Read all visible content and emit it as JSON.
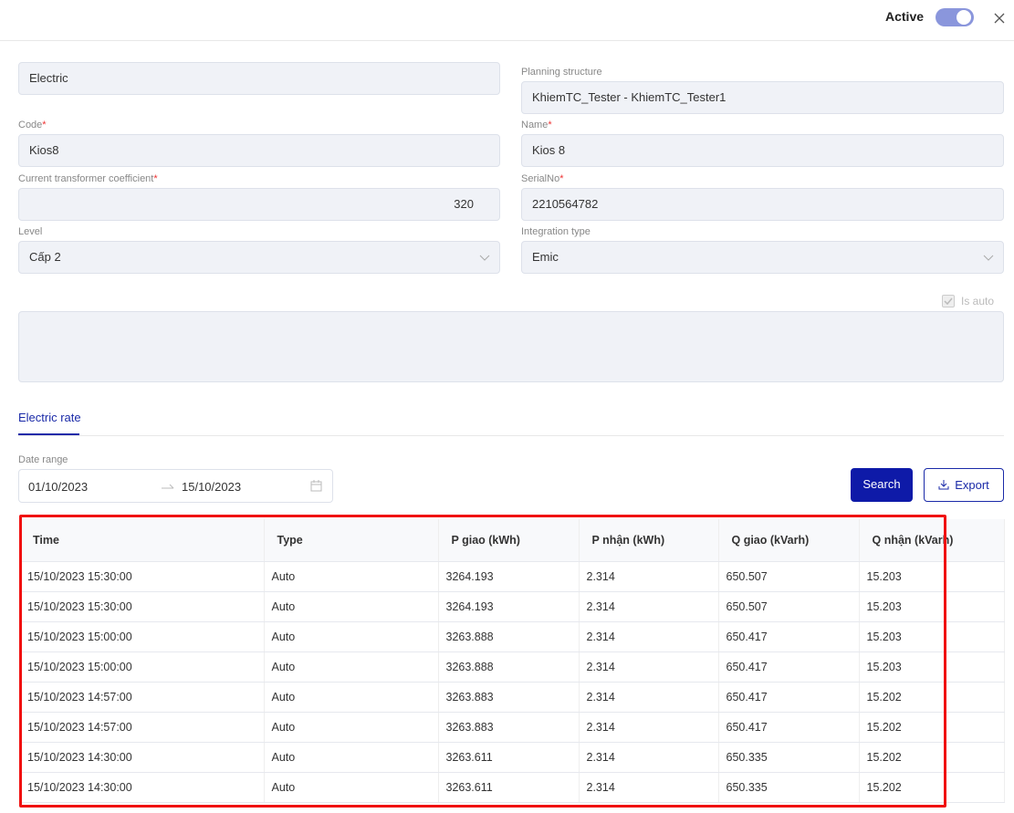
{
  "header": {
    "active_label": "Active"
  },
  "required_mark": "*",
  "form": {
    "type_value": "Electric",
    "planning_structure": {
      "label": "Planning structure",
      "value": "KhiemTC_Tester - KhiemTC_Tester1"
    },
    "code": {
      "label": "Code",
      "value": "Kios8"
    },
    "name": {
      "label": "Name",
      "value": "Kios 8"
    },
    "ct_coefficient": {
      "label": "Current transformer coefficient",
      "value": "320"
    },
    "serial_no": {
      "label": "SerialNo",
      "value": "2210564782"
    },
    "level": {
      "label": "Level",
      "value": "Cấp 2"
    },
    "integration_type": {
      "label": "Integration type",
      "value": "Emic"
    },
    "is_auto": "Is auto"
  },
  "tab": "Electric rate",
  "filter": {
    "label": "Date range",
    "start": "01/10/2023",
    "end": "15/10/2023",
    "search": "Search",
    "export": "Export"
  },
  "table": {
    "columns": [
      "Time",
      "Type",
      "P giao (kWh)",
      "P nhận (kWh)",
      "Q giao (kVarh)",
      "Q nhận (kVarh)"
    ],
    "rows": [
      [
        "15/10/2023 15:30:00",
        "Auto",
        "3264.193",
        "2.314",
        "650.507",
        "15.203"
      ],
      [
        "15/10/2023 15:30:00",
        "Auto",
        "3264.193",
        "2.314",
        "650.507",
        "15.203"
      ],
      [
        "15/10/2023 15:00:00",
        "Auto",
        "3263.888",
        "2.314",
        "650.417",
        "15.203"
      ],
      [
        "15/10/2023 15:00:00",
        "Auto",
        "3263.888",
        "2.314",
        "650.417",
        "15.203"
      ],
      [
        "15/10/2023 14:57:00",
        "Auto",
        "3263.883",
        "2.314",
        "650.417",
        "15.202"
      ],
      [
        "15/10/2023 14:57:00",
        "Auto",
        "3263.883",
        "2.314",
        "650.417",
        "15.202"
      ],
      [
        "15/10/2023 14:30:00",
        "Auto",
        "3263.611",
        "2.314",
        "650.335",
        "15.202"
      ],
      [
        "15/10/2023 14:30:00",
        "Auto",
        "3263.611",
        "2.314",
        "650.335",
        "15.202"
      ]
    ]
  }
}
